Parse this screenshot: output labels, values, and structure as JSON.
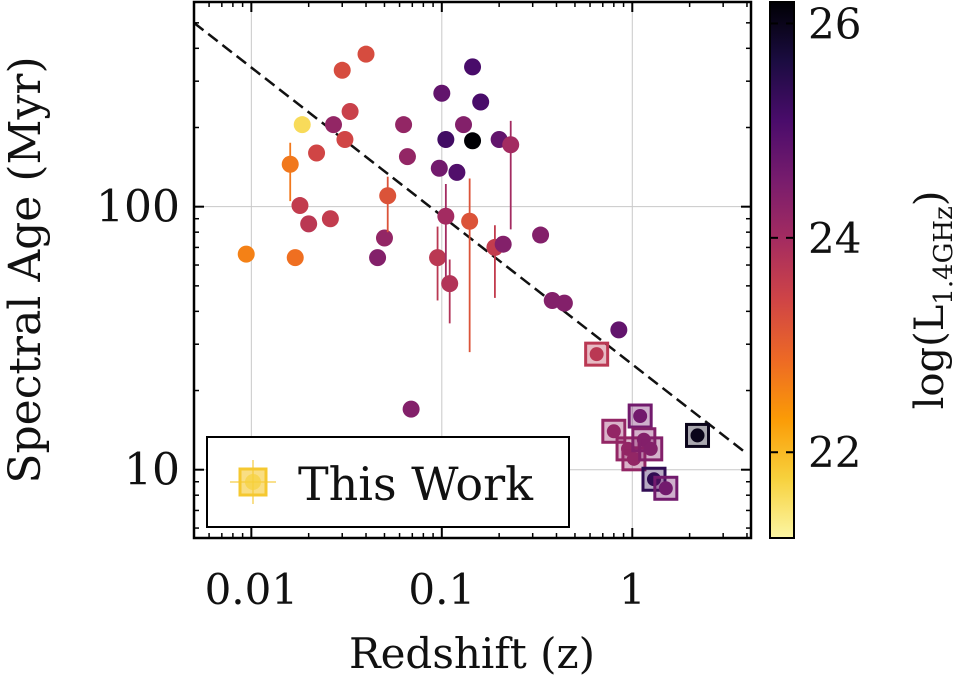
{
  "chart_data": {
    "type": "scatter",
    "xlabel": "Redshift (z)",
    "ylabel": "Spectral Age (Myr)",
    "x_scale": "log",
    "y_scale": "log",
    "xlim": [
      0.005,
      4.2
    ],
    "ylim": [
      5.5,
      600
    ],
    "x_ticks": [
      0.01,
      0.1,
      1
    ],
    "x_tick_labels": [
      "0.01",
      "0.1",
      "1"
    ],
    "y_ticks": [
      10,
      100
    ],
    "y_tick_labels": [
      "10",
      "100"
    ],
    "grid": true,
    "colorbar": {
      "label_main": "log(L",
      "label_sub": "1.4GHz",
      "label_end": ")",
      "range": [
        21.2,
        26.2
      ],
      "ticks": [
        22,
        24,
        26
      ],
      "tick_labels": [
        "22",
        "24",
        "26"
      ],
      "colors": [
        "#fcf6a4",
        "#f7d13d",
        "#fb9b06",
        "#ed6925",
        "#cf4446",
        "#a52c60",
        "#781c6d",
        "#4a0c6b",
        "#1b0c41",
        "#000004"
      ]
    },
    "legend": {
      "position": "lower-left",
      "label": "This Work",
      "marker": "square"
    },
    "fit_line": {
      "style": "dashed",
      "points": [
        [
          0.005,
          500
        ],
        [
          4.0,
          11.5
        ]
      ]
    },
    "literature_points": [
      {
        "x": 0.0094,
        "y": 66,
        "logL": 22.6,
        "yerr": [
          0,
          0
        ]
      },
      {
        "x": 0.016,
        "y": 145,
        "logL": 22.7,
        "yerr": [
          40,
          30
        ]
      },
      {
        "x": 0.017,
        "y": 64,
        "logL": 22.8,
        "yerr": [
          0,
          0
        ]
      },
      {
        "x": 0.0185,
        "y": 205,
        "logL": 21.6,
        "yerr": [
          0,
          0
        ]
      },
      {
        "x": 0.018,
        "y": 101,
        "logL": 23.6,
        "yerr": [
          0,
          0
        ]
      },
      {
        "x": 0.02,
        "y": 86,
        "logL": 23.7,
        "yerr": [
          0,
          0
        ]
      },
      {
        "x": 0.022,
        "y": 160,
        "logL": 23.4,
        "yerr": [
          0,
          0
        ]
      },
      {
        "x": 0.026,
        "y": 90,
        "logL": 23.6,
        "yerr": [
          0,
          0
        ]
      },
      {
        "x": 0.027,
        "y": 205,
        "logL": 24.2,
        "yerr": [
          0,
          0
        ]
      },
      {
        "x": 0.03,
        "y": 330,
        "logL": 23.3,
        "yerr": [
          0,
          0
        ]
      },
      {
        "x": 0.031,
        "y": 180,
        "logL": 23.4,
        "yerr": [
          0,
          0
        ]
      },
      {
        "x": 0.033,
        "y": 230,
        "logL": 23.5,
        "yerr": [
          0,
          0
        ]
      },
      {
        "x": 0.04,
        "y": 380,
        "logL": 23.3,
        "yerr": [
          0,
          0
        ]
      },
      {
        "x": 0.046,
        "y": 64,
        "logL": 24.4,
        "yerr": [
          0,
          0
        ]
      },
      {
        "x": 0.05,
        "y": 76,
        "logL": 24.2,
        "yerr": [
          0,
          0
        ]
      },
      {
        "x": 0.052,
        "y": 110,
        "logL": 23.2,
        "yerr": [
          30,
          20
        ]
      },
      {
        "x": 0.063,
        "y": 205,
        "logL": 24.2,
        "yerr": [
          0,
          0
        ]
      },
      {
        "x": 0.066,
        "y": 155,
        "logL": 24.2,
        "yerr": [
          0,
          0
        ]
      },
      {
        "x": 0.069,
        "y": 17,
        "logL": 24.4,
        "yerr": [
          0,
          0
        ]
      },
      {
        "x": 0.095,
        "y": 64,
        "logL": 23.7,
        "yerr": [
          20,
          20
        ]
      },
      {
        "x": 0.097,
        "y": 140,
        "logL": 24.6,
        "yerr": [
          0,
          0
        ]
      },
      {
        "x": 0.1,
        "y": 270,
        "logL": 24.8,
        "yerr": [
          0,
          0
        ]
      },
      {
        "x": 0.105,
        "y": 92,
        "logL": 24.0,
        "yerr": [
          40,
          30
        ]
      },
      {
        "x": 0.105,
        "y": 180,
        "logL": 25.2,
        "yerr": [
          0,
          0
        ]
      },
      {
        "x": 0.11,
        "y": 51,
        "logL": 23.8,
        "yerr": [
          15,
          12
        ]
      },
      {
        "x": 0.12,
        "y": 135,
        "logL": 25.0,
        "yerr": [
          0,
          0
        ]
      },
      {
        "x": 0.13,
        "y": 205,
        "logL": 24.4,
        "yerr": [
          0,
          0
        ]
      },
      {
        "x": 0.14,
        "y": 88,
        "logL": 23.2,
        "yerr": [
          60,
          40
        ]
      },
      {
        "x": 0.145,
        "y": 178,
        "logL": 26.2,
        "yerr": [
          0,
          0
        ]
      },
      {
        "x": 0.145,
        "y": 340,
        "logL": 25.1,
        "yerr": [
          0,
          0
        ]
      },
      {
        "x": 0.16,
        "y": 250,
        "logL": 25.1,
        "yerr": [
          0,
          0
        ]
      },
      {
        "x": 0.19,
        "y": 70,
        "logL": 23.6,
        "yerr": [
          25,
          15
        ]
      },
      {
        "x": 0.2,
        "y": 180,
        "logL": 24.8,
        "yerr": [
          0,
          0
        ]
      },
      {
        "x": 0.21,
        "y": 72,
        "logL": 24.4,
        "yerr": [
          0,
          0
        ]
      },
      {
        "x": 0.23,
        "y": 172,
        "logL": 24.0,
        "yerr": [
          90,
          40
        ]
      },
      {
        "x": 0.33,
        "y": 78,
        "logL": 24.4,
        "yerr": [
          0,
          0
        ]
      },
      {
        "x": 0.38,
        "y": 44,
        "logL": 24.4,
        "yerr": [
          0,
          0
        ]
      },
      {
        "x": 0.44,
        "y": 43,
        "logL": 24.4,
        "yerr": [
          0,
          0
        ]
      },
      {
        "x": 0.85,
        "y": 34,
        "logL": 24.8,
        "yerr": [
          0,
          0
        ]
      }
    ],
    "this_work_points": [
      {
        "x": 0.65,
        "y": 27.5,
        "logL": 23.7
      },
      {
        "x": 0.8,
        "y": 14,
        "logL": 24.2
      },
      {
        "x": 0.95,
        "y": 12,
        "logL": 24.2
      },
      {
        "x": 1.02,
        "y": 11,
        "logL": 24.2
      },
      {
        "x": 1.1,
        "y": 16,
        "logL": 24.6
      },
      {
        "x": 1.15,
        "y": 13,
        "logL": 24.4
      },
      {
        "x": 1.25,
        "y": 12,
        "logL": 24.4
      },
      {
        "x": 1.3,
        "y": 9.2,
        "logL": 25.4
      },
      {
        "x": 1.5,
        "y": 8.5,
        "logL": 24.6
      },
      {
        "x": 2.2,
        "y": 13.5,
        "logL": 26.0
      }
    ]
  }
}
